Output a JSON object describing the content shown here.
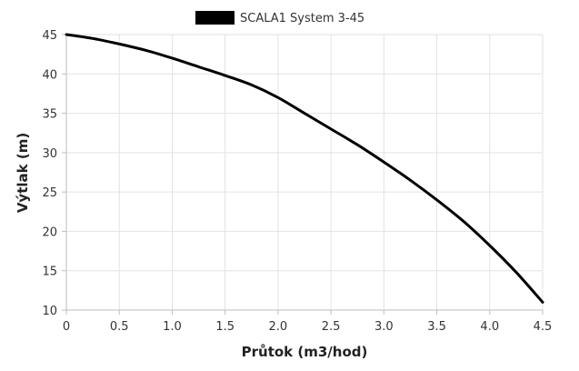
{
  "chart_data": {
    "type": "line",
    "title": "",
    "xlabel": "Průtok (m3/hod)",
    "ylabel": "Výtlak (m)",
    "xlim": [
      0,
      4.5
    ],
    "ylim": [
      10,
      45
    ],
    "xticks": [
      0,
      0.5,
      1.0,
      1.5,
      2.0,
      2.5,
      3.0,
      3.5,
      4.0,
      4.5
    ],
    "xtick_labels": [
      "0",
      "0.5",
      "1.0",
      "1.5",
      "2.0",
      "2.5",
      "3.0",
      "3.5",
      "4.0",
      "4.5"
    ],
    "yticks": [
      10,
      15,
      20,
      25,
      30,
      35,
      40,
      45
    ],
    "ytick_labels": [
      "10",
      "15",
      "20",
      "25",
      "30",
      "35",
      "40",
      "45"
    ],
    "grid": true,
    "legend_position": "top-center",
    "series": [
      {
        "name": "SCALA1 System 3-45",
        "color": "#000000",
        "x": [
          0,
          0.25,
          0.5,
          0.75,
          1.0,
          1.25,
          1.5,
          1.75,
          2.0,
          2.25,
          2.5,
          2.75,
          3.0,
          3.25,
          3.5,
          3.75,
          4.0,
          4.25,
          4.5
        ],
        "y": [
          45,
          44.5,
          43.8,
          43.0,
          42.0,
          40.9,
          39.8,
          38.6,
          37.0,
          35.0,
          33.0,
          31.0,
          28.8,
          26.5,
          24.0,
          21.3,
          18.2,
          14.8,
          11.0
        ]
      }
    ]
  }
}
